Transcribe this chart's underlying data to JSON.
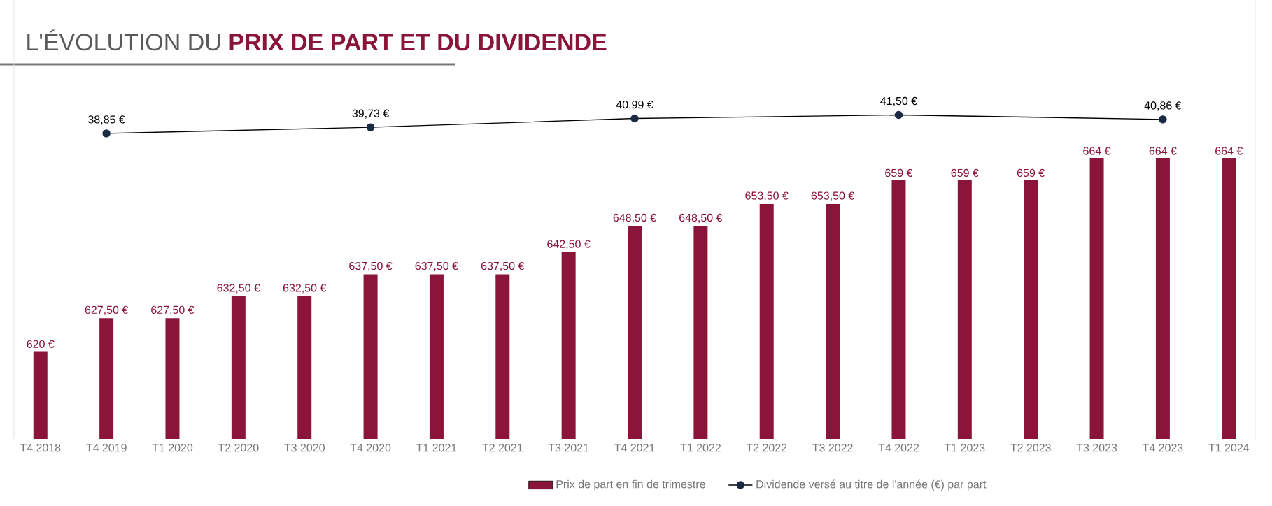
{
  "chart_data": {
    "type": "bar",
    "title": "L'ÉVOLUTION DU **PRIX DE PART ET DU DIVIDENDE**",
    "categories": [
      "T4 2018",
      "T4 2019",
      "T1 2020",
      "T2 2020",
      "T3 2020",
      "T4 2020",
      "T1 2021",
      "T2 2021",
      "T3 2021",
      "T4 2021",
      "T1 2022",
      "T2 2022",
      "T3 2022",
      "T4 2022",
      "T1 2023",
      "T2 2023",
      "T3 2023",
      "T4 2023",
      "T1 2024"
    ],
    "ylim": [
      600,
      700
    ],
    "y2lim": [
      -5,
      58
    ],
    "tick_labels": "x",
    "legend": "bottom",
    "grid": false,
    "series": [
      {
        "name": "Prix de part en fin de trimestre",
        "color": "#8b1538",
        "values": [
          620,
          627.5,
          627.5,
          632.5,
          632.5,
          637.5,
          637.5,
          637.5,
          642.5,
          648.5,
          648.5,
          653.5,
          653.5,
          659,
          659,
          659,
          664,
          664,
          664
        ],
        "value_labels": [
          "620 €",
          "627,50 €",
          "627,50 €",
          "632,50 €",
          "632,50 €",
          "637,50 €",
          "637,50 €",
          "637,50 €",
          "642,50 €",
          "648,50 €",
          "648,50 €",
          "653,50 €",
          "653,50 €",
          "659 €",
          "659 €",
          "659 €",
          "664 €",
          "664 €",
          "664 €"
        ]
      },
      {
        "name": "Dividende versé au titre de l'année (€) par part",
        "type": "line",
        "axis": "y2",
        "marker": "circle",
        "line_style": "solid",
        "color": "#1b2a44",
        "values": [
          null,
          38.85,
          null,
          null,
          null,
          39.73,
          null,
          null,
          null,
          40.99,
          null,
          null,
          null,
          41.5,
          null,
          null,
          null,
          40.86,
          null
        ],
        "value_labels": [
          null,
          "38,85 €",
          null,
          null,
          null,
          "39,73 €",
          null,
          null,
          null,
          "40,99 €",
          null,
          null,
          null,
          "41,50 €",
          null,
          null,
          null,
          "40,86 €",
          null
        ]
      }
    ]
  }
}
